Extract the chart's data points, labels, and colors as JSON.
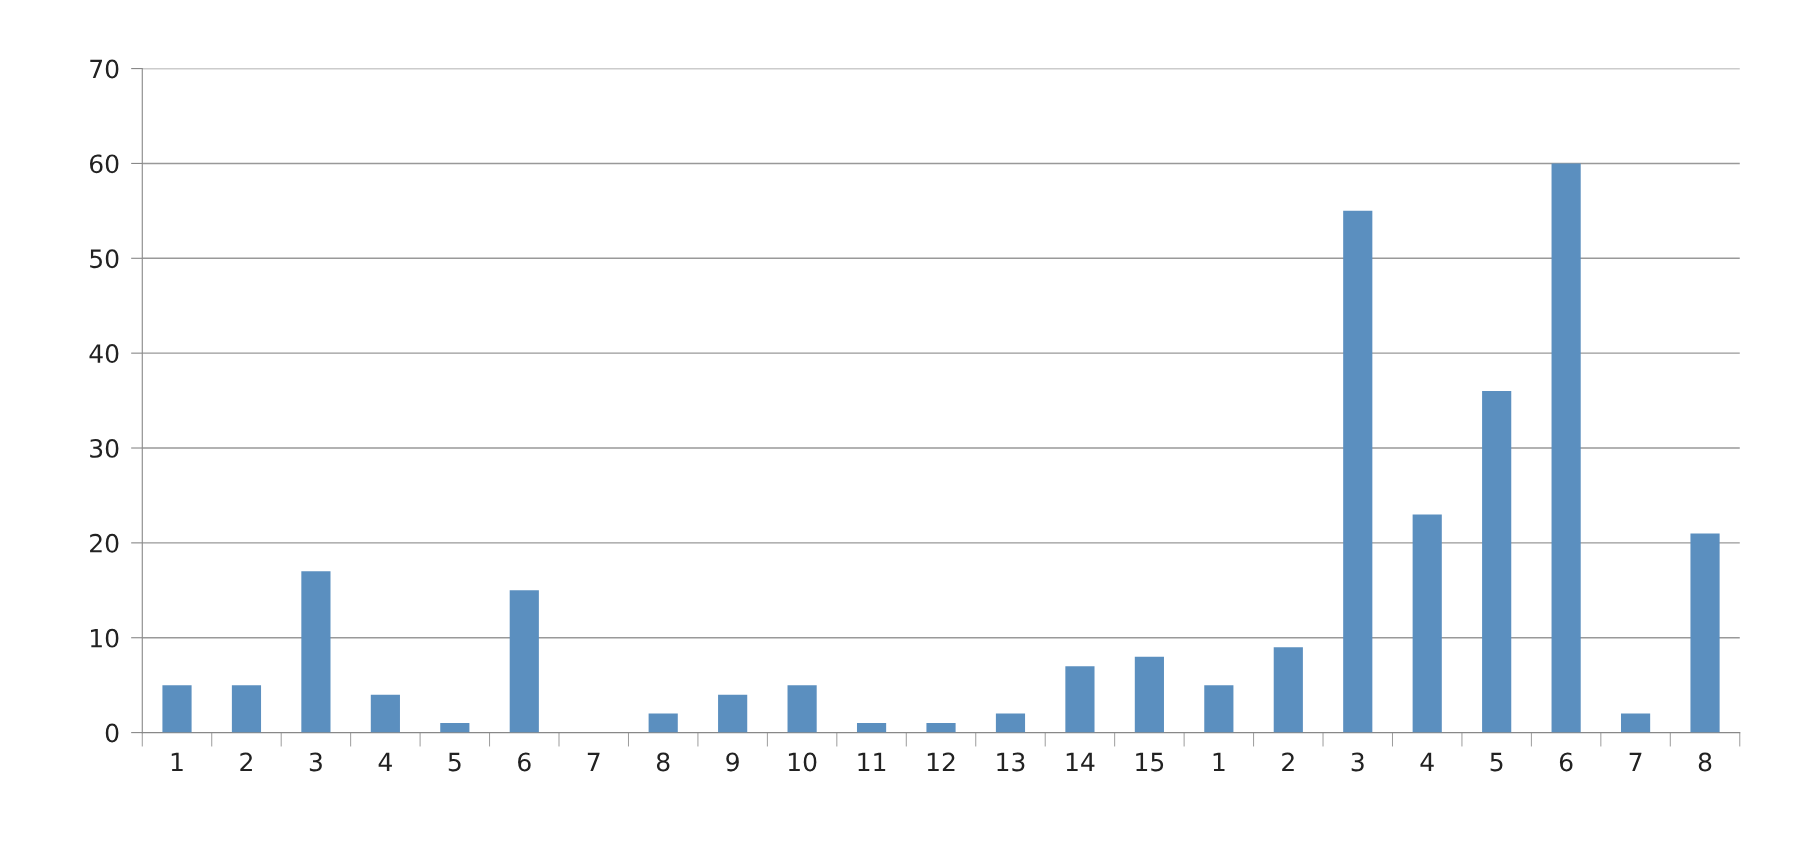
{
  "chart_data": {
    "type": "bar",
    "categories": [
      "1",
      "2",
      "3",
      "4",
      "5",
      "6",
      "7",
      "8",
      "9",
      "10",
      "11",
      "12",
      "13",
      "14",
      "15",
      "1",
      "2",
      "3",
      "4",
      "5",
      "6",
      "7",
      "8"
    ],
    "values": [
      5,
      5,
      17,
      4,
      1,
      15,
      0,
      2,
      4,
      5,
      1,
      1,
      2,
      7,
      8,
      5,
      9,
      55,
      23,
      36,
      60,
      2,
      21
    ],
    "color": "#5b8fbf",
    "ylim": [
      0,
      70
    ],
    "yticks": [
      0,
      10,
      20,
      30,
      40,
      50,
      60,
      70
    ],
    "grid": "y",
    "legend": false
  }
}
